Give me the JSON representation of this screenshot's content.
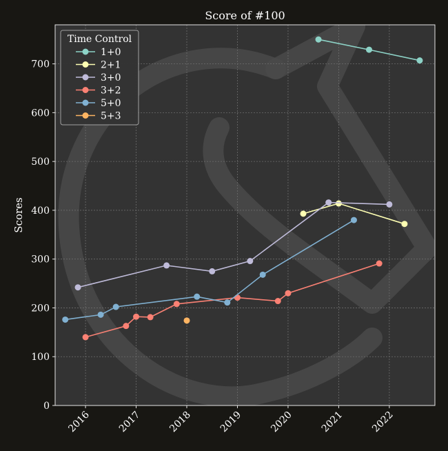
{
  "colors": {
    "figure_bg": "#181713",
    "axes_bg": "#333333",
    "grid": "#6e6e6e",
    "axis_line": "#e6e6e6",
    "text": "#ffffff",
    "watermark": "#4a4a4a",
    "legend_bg": "#333333",
    "legend_border": "#a8a8a8"
  },
  "chart_data": {
    "type": "line",
    "title": "Score of #100",
    "xlabel": "",
    "ylabel": "Scores",
    "xlim": [
      2015.4,
      2022.9
    ],
    "ylim": [
      0,
      780
    ],
    "x_ticks": [
      2016,
      2017,
      2018,
      2019,
      2020,
      2021,
      2022
    ],
    "x_tick_labels": [
      "2016",
      "2017",
      "2018",
      "2019",
      "2020",
      "2021",
      "2022"
    ],
    "y_ticks": [
      0,
      100,
      200,
      300,
      400,
      500,
      600,
      700
    ],
    "y_tick_labels": [
      "0",
      "100",
      "200",
      "300",
      "400",
      "500",
      "600",
      "700"
    ],
    "grid": true,
    "legend": {
      "title": "Time Control",
      "placement": "top-left"
    },
    "series": [
      {
        "name": "1+0",
        "color": "#8dd3c7",
        "points": [
          [
            2020.6,
            750
          ],
          [
            2021.6,
            729
          ],
          [
            2022.6,
            707
          ]
        ]
      },
      {
        "name": "2+1",
        "color": "#feffb3",
        "points": [
          [
            2020.3,
            393
          ],
          [
            2021.0,
            414
          ],
          [
            2022.3,
            372
          ]
        ]
      },
      {
        "name": "3+0",
        "color": "#bfbbd9",
        "points": [
          [
            2015.85,
            242
          ],
          [
            2017.6,
            287
          ],
          [
            2018.5,
            275
          ],
          [
            2019.25,
            296
          ],
          [
            2020.8,
            416
          ],
          [
            2022.0,
            412
          ]
        ]
      },
      {
        "name": "3+2",
        "color": "#fa8174",
        "points": [
          [
            2016.0,
            140
          ],
          [
            2016.8,
            163
          ],
          [
            2017.0,
            182
          ],
          [
            2017.28,
            181
          ],
          [
            2017.8,
            208
          ],
          [
            2019.0,
            221
          ],
          [
            2019.8,
            214
          ],
          [
            2020.0,
            230
          ],
          [
            2021.8,
            291
          ]
        ]
      },
      {
        "name": "5+0",
        "color": "#81b1d2",
        "points": [
          [
            2015.6,
            176
          ],
          [
            2016.3,
            186
          ],
          [
            2016.6,
            202
          ],
          [
            2018.2,
            223
          ],
          [
            2018.8,
            211
          ],
          [
            2019.5,
            268
          ],
          [
            2021.3,
            380
          ]
        ]
      },
      {
        "name": "5+3",
        "color": "#fdb462",
        "points": [
          [
            2018.0,
            174
          ]
        ]
      }
    ]
  }
}
